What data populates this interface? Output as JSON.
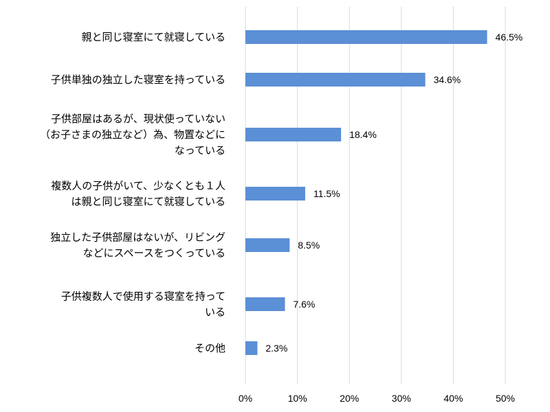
{
  "chart_data": {
    "type": "bar",
    "orientation": "horizontal",
    "categories": [
      [
        "親と同じ寝室にて就寝している"
      ],
      [
        "子供単独の独立した寝室を持っている"
      ],
      [
        "子供部屋はあるが、現状使っていない",
        "（お子さまの独立など）為、物置などに",
        "なっている"
      ],
      [
        "複数人の子供がいて、少なくとも１人",
        "は親と同じ寝室にて就寝している"
      ],
      [
        "独立した子供部屋はないが、リビング",
        "などにスペースをつくっている"
      ],
      [
        "子供複数人で使用する寝室を持って",
        "いる"
      ],
      [
        "その他"
      ]
    ],
    "values": [
      46.5,
      34.6,
      18.4,
      11.5,
      8.5,
      7.6,
      2.3
    ],
    "value_labels": [
      "46.5%",
      "34.6%",
      "18.4%",
      "11.5%",
      "8.5%",
      "7.6%",
      "2.3%"
    ],
    "xlim": [
      0,
      50
    ],
    "xticks": [
      0,
      10,
      20,
      30,
      40,
      50
    ],
    "xtick_labels": [
      "0%",
      "10%",
      "20%",
      "30%",
      "40%",
      "50%"
    ],
    "grid": "vertical",
    "colors": {
      "bar": "#5b8fd6",
      "grid": "#d9d9d9",
      "text": "#000000"
    }
  }
}
